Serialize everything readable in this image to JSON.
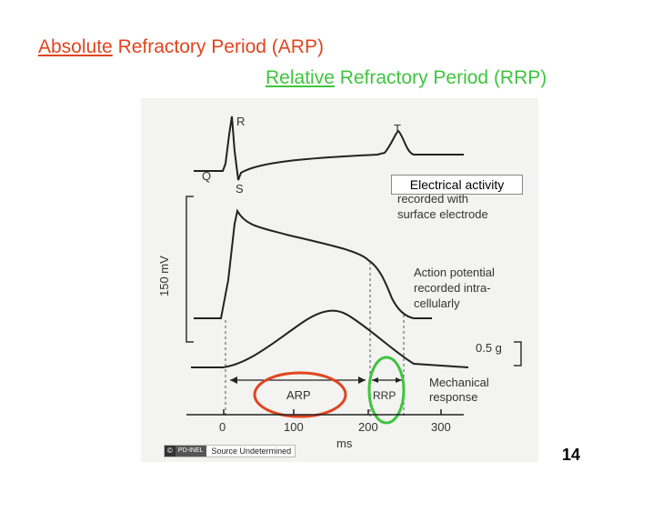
{
  "title": {
    "line1_highlight": "Absolute",
    "line1_rest": " Refractory Period  (ARP)",
    "line2_highlight": "Relative",
    "line2_rest": " Refractory Period  (RRP)"
  },
  "figure": {
    "ecg_labels": {
      "r": "R",
      "q": "Q",
      "s": "S",
      "t": "T"
    },
    "electrical_activity_label": "Electrical activity",
    "ecg_caption_1": "recorded with",
    "ecg_caption_2": "surface electrode",
    "voltage_scale_label": "150 mV",
    "ap_caption_1": "Action potential",
    "ap_caption_2": "recorded intra-",
    "ap_caption_3": "cellularly",
    "force_scale_label": "0.5 g",
    "mech_caption_1": "Mechanical",
    "mech_caption_2": "response",
    "arp_label": "ARP",
    "rrp_label": "RRP",
    "x_ticks": [
      "0",
      "100",
      "200",
      "300"
    ],
    "x_unit": "ms"
  },
  "credit": {
    "cc": "©",
    "pd": "PD-INEL",
    "text": "Source Undetermined"
  },
  "slide_number": "14",
  "colors": {
    "absolute": "#e0451f",
    "relative": "#3fc43f"
  }
}
